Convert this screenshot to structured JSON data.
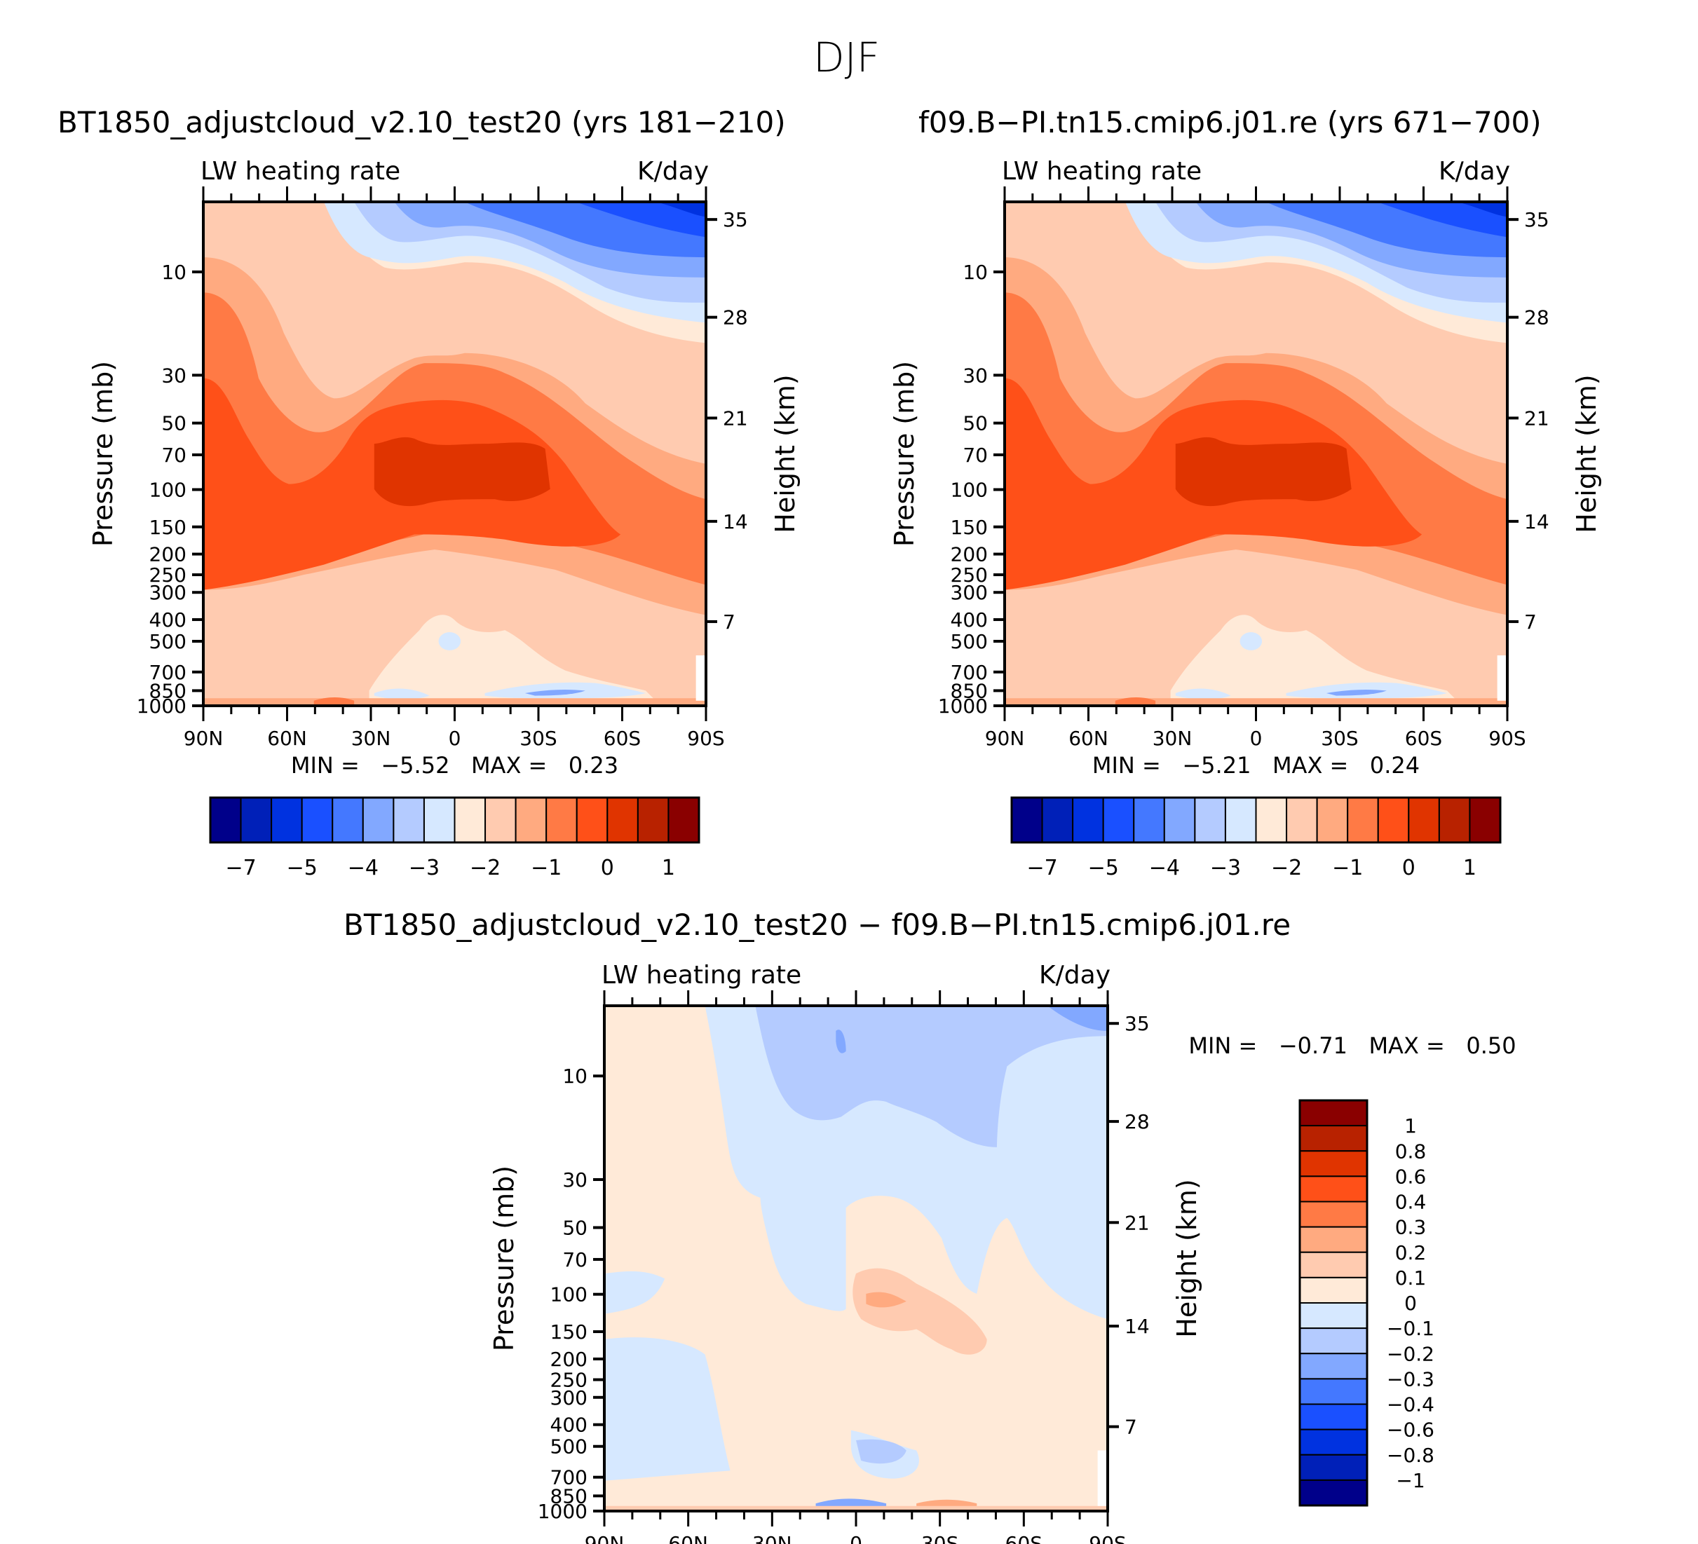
{
  "figure_title": "DJF",
  "panels": [
    {
      "title": "BT1850_adjustcloud_v2.10_test20 (yrs 181−210)",
      "left_label": "LW heating rate",
      "right_label": "K/day",
      "min_label": "MIN =",
      "min_value": "−5.52",
      "max_label": "MAX =",
      "max_value": "0.23"
    },
    {
      "title": "f09.B−PI.tn15.cmip6.j01.re (yrs 671−700)",
      "left_label": "LW heating rate",
      "right_label": "K/day",
      "min_label": "MIN =",
      "min_value": "−5.21",
      "max_label": "MAX =",
      "max_value": "0.24"
    },
    {
      "title": "BT1850_adjustcloud_v2.10_test20 − f09.B−PI.tn15.cmip6.j01.re",
      "left_label": "LW heating rate",
      "right_label": "K/day",
      "min_label": "MIN =",
      "min_value": "−0.71",
      "max_label": "MAX =",
      "max_value": "0.50"
    }
  ],
  "axes": {
    "ylabel": "Pressure (mb)",
    "ylabel_right": "Height (km)",
    "xticks": [
      "90N",
      "60N",
      "30N",
      "0",
      "30S",
      "60S",
      "90S"
    ],
    "pressure_ticks": [
      "10",
      "30",
      "50",
      "70",
      "100",
      "150",
      "200",
      "250",
      "300",
      "400",
      "500",
      "700",
      "850",
      "1000"
    ],
    "height_ticks": [
      "35",
      "28",
      "21",
      "14",
      "7"
    ]
  },
  "colorbar_main": {
    "colors": [
      "#00008a",
      "#0020b8",
      "#0032e0",
      "#1a50ff",
      "#4478ff",
      "#82a8ff",
      "#b4cbff",
      "#d6e8ff",
      "#ffead8",
      "#ffcbb0",
      "#ffaa80",
      "#ff7a45",
      "#ff5018",
      "#e03400",
      "#b82200",
      "#8a0000"
    ],
    "labels": [
      "−7",
      "−5",
      "−4",
      "−3",
      "−2",
      "−1",
      "0",
      "1"
    ]
  },
  "colorbar_diff": {
    "colors": [
      "#8a0000",
      "#b82200",
      "#e03400",
      "#ff5018",
      "#ff7a45",
      "#ffaa80",
      "#ffcbb0",
      "#ffead8",
      "#d6e8ff",
      "#b4cbff",
      "#82a8ff",
      "#4478ff",
      "#1a50ff",
      "#0032e0",
      "#0020b8",
      "#00008a"
    ],
    "labels": [
      "1",
      "0.8",
      "0.6",
      "0.4",
      "0.3",
      "0.2",
      "0.1",
      "0",
      "−0.1",
      "−0.2",
      "−0.3",
      "−0.4",
      "−0.6",
      "−0.8",
      "−1"
    ]
  },
  "chart_data": [
    {
      "type": "heatmap",
      "title": "BT1850_adjustcloud_v2.10_test20 (yrs 181−210)",
      "subtitle_left": "LW heating rate",
      "subtitle_right": "K/day",
      "xlabel": "",
      "ylabel": "Pressure (mb)",
      "ylabel_right": "Height (km)",
      "x_range": [
        "90N",
        "90S"
      ],
      "y_range_mb": [
        1000,
        3
      ],
      "contour_levels": [
        -7,
        -6,
        -5,
        -4.5,
        -4,
        -3.5,
        -3,
        -2.5,
        -2,
        -1.5,
        -1,
        -0.5,
        0,
        0.5,
        1
      ],
      "min": -5.52,
      "max": 0.23,
      "features": "Strongest cooling (~-5) at top-right (southern high latitudes, upper levels); weakest cooling (~-1.5 to -1) in tropical lower stratosphere around 70-100 mb; weak positive/near-zero values near surface"
    },
    {
      "type": "heatmap",
      "title": "f09.B−PI.tn15.cmip6.j01.re (yrs 671−700)",
      "subtitle_left": "LW heating rate",
      "subtitle_right": "K/day",
      "ylabel": "Pressure (mb)",
      "ylabel_right": "Height (km)",
      "x_range": [
        "90N",
        "90S"
      ],
      "y_range_mb": [
        1000,
        3
      ],
      "contour_levels": [
        -7,
        -6,
        -5,
        -4.5,
        -4,
        -3.5,
        -3,
        -2.5,
        -2,
        -1.5,
        -1,
        -0.5,
        0,
        0.5,
        1
      ],
      "min": -5.21,
      "max": 0.24
    },
    {
      "type": "heatmap",
      "title": "BT1850_adjustcloud_v2.10_test20 − f09.B−PI.tn15.cmip6.j01.re",
      "subtitle_left": "LW heating rate",
      "subtitle_right": "K/day",
      "ylabel": "Pressure (mb)",
      "ylabel_right": "Height (km)",
      "x_range": [
        "90N",
        "90S"
      ],
      "y_range_mb": [
        1000,
        3
      ],
      "contour_levels": [
        -1,
        -0.8,
        -0.6,
        -0.4,
        -0.3,
        -0.2,
        -0.1,
        0,
        0.1,
        0.2,
        0.3,
        0.4,
        0.6,
        0.8,
        1
      ],
      "min": -0.71,
      "max": 0.5,
      "features": "Mostly 0 to 0.1 positive; -0.1 to -0.2 negative in upper levels north of equator to 45S; positive 0.1-0.3 anomaly near 200 mb between equator and 45S"
    }
  ]
}
